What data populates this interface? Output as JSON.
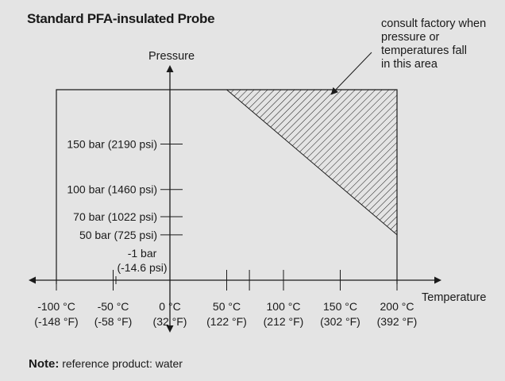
{
  "chart_data": {
    "type": "area",
    "title": "Standard PFA-insulated Probe",
    "xlabel": "Temperature",
    "ylabel": "Pressure",
    "x_ticks": [
      {
        "value": -100,
        "line1": "-100 °C",
        "line2": "(-148 °F)"
      },
      {
        "value": -50,
        "line1": "-50 °C",
        "line2": "(-58 °F)"
      },
      {
        "value": 0,
        "line1": "0 °C",
        "line2": "(32 °F)"
      },
      {
        "value": 50,
        "line1": "50 °C",
        "line2": "(122 °F)"
      },
      {
        "value": 70,
        "line1": "",
        "line2": ""
      },
      {
        "value": 100,
        "line1": "100 °C",
        "line2": "(212 °F)"
      },
      {
        "value": 150,
        "line1": "150 °C",
        "line2": "(302 °F)"
      },
      {
        "value": 200,
        "line1": "200 °C",
        "line2": "(392 °F)"
      }
    ],
    "y_ticks": [
      {
        "value": 150,
        "label": "150 bar (2190 psi)"
      },
      {
        "value": 100,
        "label": "100 bar (1460 psi)"
      },
      {
        "value": 70,
        "label": "70 bar (1022 psi)"
      },
      {
        "value": 50,
        "label": "50 bar (725 psi)"
      },
      {
        "value": -1,
        "line1": "-1 bar",
        "line2": "(-14.6 psi)"
      }
    ],
    "operating_envelope": [
      [
        -100,
        -1
      ],
      [
        -100,
        210
      ],
      [
        200,
        210
      ],
      [
        200,
        -1
      ]
    ],
    "consult_region": [
      [
        50,
        210
      ],
      [
        200,
        210
      ],
      [
        200,
        50
      ]
    ],
    "annotation": [
      "consult factory when",
      "pressure or",
      "temperatures fall",
      "in this area"
    ]
  },
  "note": {
    "label": "Note:",
    "text": " reference product: water"
  }
}
